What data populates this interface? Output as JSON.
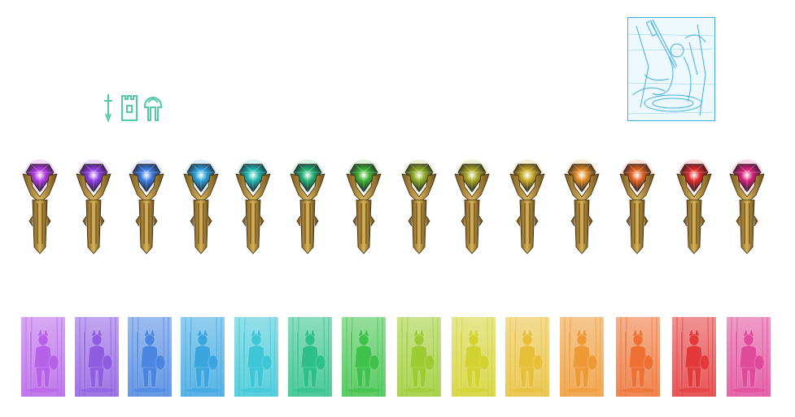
{
  "toolbar_icons": [
    {
      "name": "sword-icon"
    },
    {
      "name": "tower-icon"
    },
    {
      "name": "banner-icon"
    }
  ],
  "icon_color": "#52c9a8",
  "preview": {
    "name": "selected-hero-preview",
    "tint": "#3fb0e0"
  },
  "gems": [
    {
      "color": "#b23be0"
    },
    {
      "color": "#8e3ce0"
    },
    {
      "color": "#3a7be0"
    },
    {
      "color": "#2aa0d8"
    },
    {
      "color": "#1fb8b0"
    },
    {
      "color": "#20b070"
    },
    {
      "color": "#3cb030"
    },
    {
      "color": "#8cab20"
    },
    {
      "color": "#a8a520"
    },
    {
      "color": "#c8a820"
    },
    {
      "color": "#e08a20"
    },
    {
      "color": "#e06020"
    },
    {
      "color": "#e02a2a"
    },
    {
      "color": "#d8207a"
    }
  ],
  "cards": [
    {
      "color": "#b562e8",
      "hero": "bird-knight"
    },
    {
      "color": "#8e5de0",
      "hero": "elephant-knight"
    },
    {
      "color": "#4a86e0",
      "hero": "goat-knight"
    },
    {
      "color": "#3aa6e0",
      "hero": "rabbit-knight"
    },
    {
      "color": "#3cc6d6",
      "hero": "bird-paladin"
    },
    {
      "color": "#2ec08a",
      "hero": "wolf-warrior"
    },
    {
      "color": "#3ec24a",
      "hero": "stag-knight"
    },
    {
      "color": "#9ccb32",
      "hero": "bear-warrior"
    },
    {
      "color": "#d2d230",
      "hero": "lizard-spearman"
    },
    {
      "color": "#e8bf38",
      "hero": "frog-knight"
    },
    {
      "color": "#ee9a34",
      "hero": "hooded-warrior"
    },
    {
      "color": "#ee7032",
      "hero": "fox-warrior"
    },
    {
      "color": "#e23a3a",
      "hero": "dog-spearman"
    },
    {
      "color": "#e04a9a",
      "hero": "halberd-knight"
    }
  ]
}
